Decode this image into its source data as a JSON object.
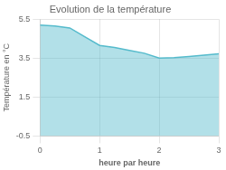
{
  "chart_data": {
    "type": "area",
    "title": "Evolution de la température",
    "x_label": "heure par heure",
    "y_label": "Température en °C",
    "x": [
      0,
      0.25,
      0.5,
      0.75,
      1.0,
      1.25,
      1.5,
      1.75,
      2.0,
      2.25,
      2.5,
      2.75,
      3.0
    ],
    "values": [
      5.2,
      5.15,
      5.05,
      4.6,
      4.15,
      4.05,
      3.9,
      3.75,
      3.5,
      3.52,
      3.58,
      3.65,
      3.72
    ],
    "color": "#55bbcc",
    "xlim": [
      0,
      3
    ],
    "xticks": [
      0,
      1,
      2,
      3
    ],
    "ylim": [
      -0.5,
      5.5
    ],
    "yticks": [
      -0.5,
      1.5,
      3.5,
      5.5
    ],
    "grid": true
  }
}
